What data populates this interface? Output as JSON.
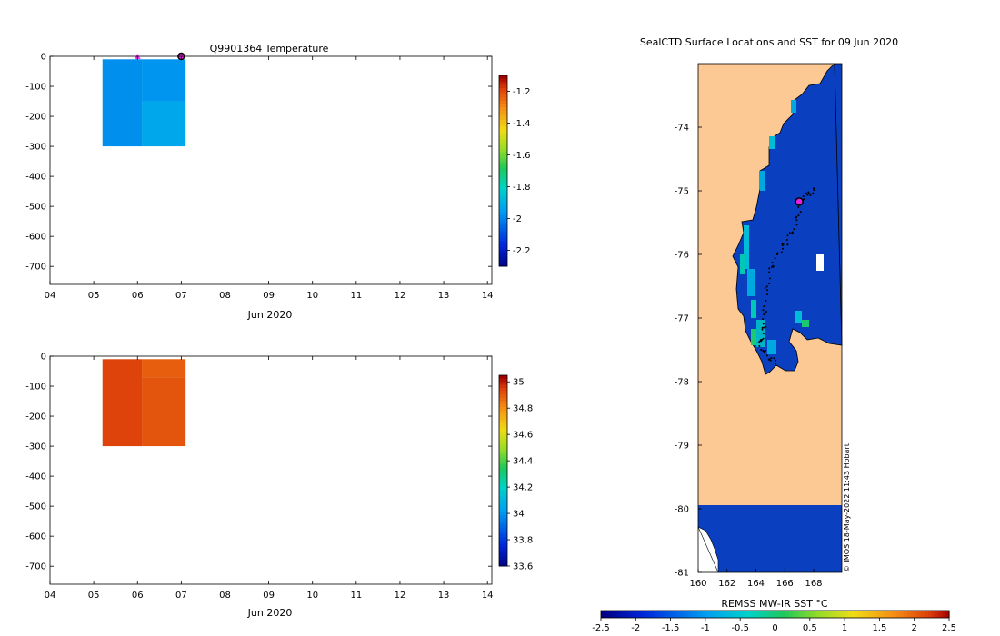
{
  "colors": {
    "land": "#fcc894",
    "sea_ice_blue": "#0a3fbf",
    "marker_fill": "#e81ee0",
    "marker_edge": "#000000",
    "start_marker": "#ff33ff",
    "temp_cell_a": "#00d2c8",
    "temp_cell_b": "#00c8b4",
    "sal_cell_a": "#b52a02",
    "sal_cell_b": "#be3a0a"
  },
  "charts": [
    {
      "type": "heatmap",
      "title": "Q9901364  Temperature",
      "xlabel": "Jun 2020",
      "x_ticks": [
        "04",
        "05",
        "06",
        "07",
        "08",
        "09",
        "10",
        "11",
        "12",
        "13",
        "14"
      ],
      "y_ticks": [
        "0",
        "-100",
        "-200",
        "-300",
        "-400",
        "-500",
        "-600",
        "-700"
      ],
      "xlim": [
        4,
        14.1
      ],
      "ylim": [
        -760,
        0
      ],
      "cells": [
        {
          "x0": 5.2,
          "x1": 6.1,
          "y0": -10,
          "y1": -300,
          "value": -1.97
        },
        {
          "x0": 6.1,
          "x1": 7.1,
          "y0": -10,
          "y1": -150,
          "value": -1.96
        },
        {
          "x0": 6.1,
          "x1": 7.1,
          "y0": -150,
          "y1": -300,
          "value": -1.92
        }
      ],
      "colorbar": {
        "min": -2.3,
        "max": -1.1,
        "ticks": [
          "-1.2",
          "-1.4",
          "-1.6",
          "-1.8",
          "-2",
          "-2.2"
        ]
      },
      "markers": [
        {
          "x": 6.0,
          "y": 0,
          "kind": "start"
        },
        {
          "x": 7.0,
          "y": 0,
          "kind": "current"
        }
      ]
    },
    {
      "type": "heatmap",
      "title": "",
      "xlabel": "Jun 2020",
      "x_ticks": [
        "04",
        "05",
        "06",
        "07",
        "08",
        "09",
        "10",
        "11",
        "12",
        "13",
        "14"
      ],
      "y_ticks": [
        "0",
        "-100",
        "-200",
        "-300",
        "-400",
        "-500",
        "-600",
        "-700"
      ],
      "xlim": [
        4,
        14.1
      ],
      "ylim": [
        -760,
        0
      ],
      "cells": [
        {
          "x0": 5.2,
          "x1": 6.1,
          "y0": -10,
          "y1": -300,
          "value": 34.95
        },
        {
          "x0": 6.1,
          "x1": 7.1,
          "y0": -10,
          "y1": -70,
          "value": 34.9
        },
        {
          "x0": 6.1,
          "x1": 7.1,
          "y0": -70,
          "y1": -300,
          "value": 34.92
        }
      ],
      "colorbar": {
        "min": 33.6,
        "max": 35.05,
        "ticks": [
          "35",
          "34.8",
          "34.6",
          "34.4",
          "34.2",
          "34",
          "33.8",
          "33.6"
        ]
      }
    },
    {
      "type": "map",
      "title": "SealCTD Surface Locations and SST for 09 Jun 2020",
      "x_ticks": [
        "160",
        "162",
        "164",
        "166",
        "168"
      ],
      "y_ticks": [
        "-74",
        "-75",
        "-76",
        "-77",
        "-78",
        "-79",
        "-80",
        "-81"
      ],
      "xlim": [
        160,
        170.2
      ],
      "ylim": [
        -81.1,
        -73.05
      ],
      "current_position": {
        "lon": 167.0,
        "lat": -75.17
      },
      "colorbar": {
        "label": "REMSS MW-IR SST °C",
        "min": -2.5,
        "max": 2.5,
        "ticks": [
          "-2.5",
          "-2",
          "-1.5",
          "-1",
          "-0.5",
          "0",
          "0.5",
          "1",
          "1.5",
          "2",
          "2.5"
        ]
      },
      "credit": "© IMOS 18-May-2022 11:43 Hobart"
    }
  ]
}
